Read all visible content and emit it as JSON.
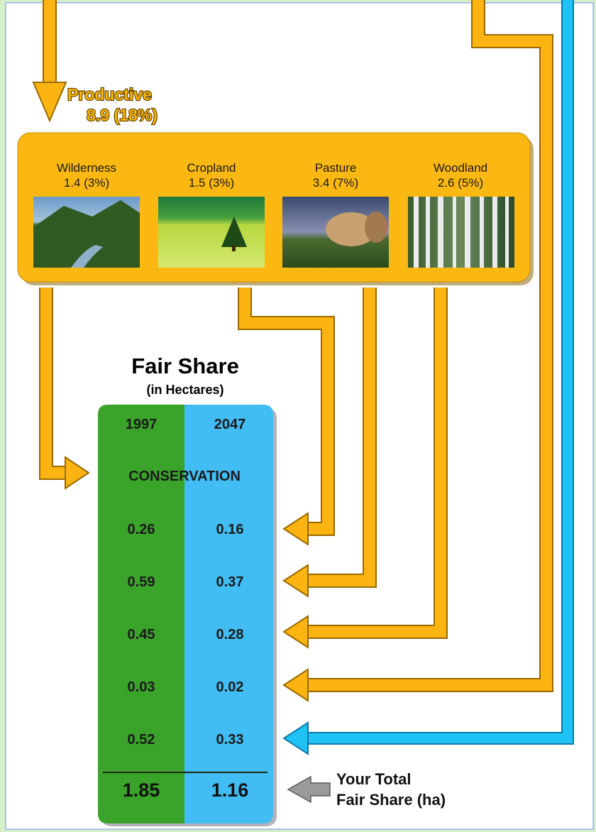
{
  "productive": {
    "label": "Productive",
    "value": "8.9 (18%)"
  },
  "categories": [
    {
      "name": "Wilderness",
      "value": "1.4 (3%)"
    },
    {
      "name": "Cropland",
      "value": "1.5 (3%)"
    },
    {
      "name": "Pasture",
      "value": "3.4 (7%)"
    },
    {
      "name": "Woodland",
      "value": "2.6 (5%)"
    }
  ],
  "fair_share": {
    "title": "Fair Share",
    "subtitle": "(in Hectares)",
    "columns": [
      "1997",
      "2047"
    ],
    "section": "CONSERVATION",
    "rows": [
      [
        "0.26",
        "0.16"
      ],
      [
        "0.59",
        "0.37"
      ],
      [
        "0.45",
        "0.28"
      ],
      [
        "0.03",
        "0.02"
      ],
      [
        "0.52",
        "0.33"
      ]
    ],
    "totals": [
      "1.85",
      "1.16"
    ],
    "total_label": [
      "Your Total",
      "Fair Share (ha)"
    ]
  }
}
